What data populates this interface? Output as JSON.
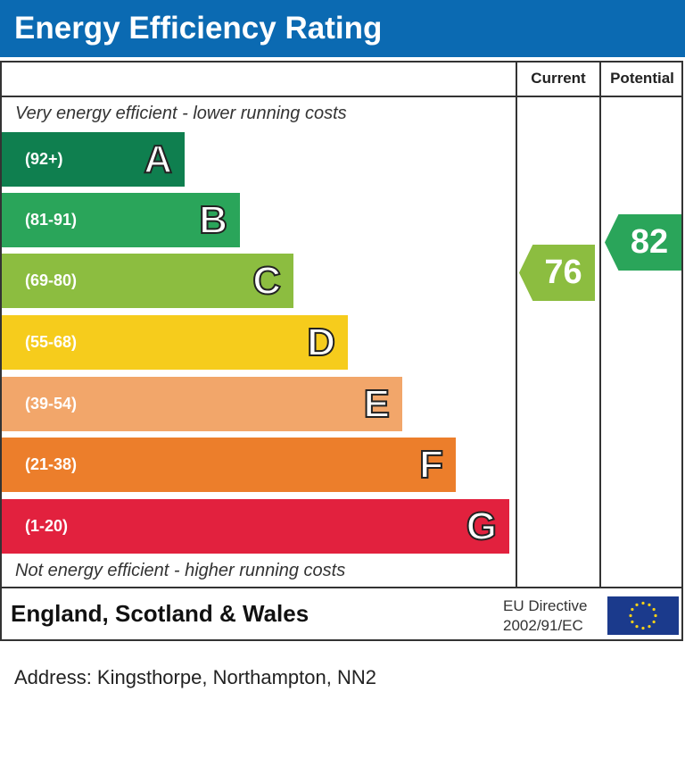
{
  "title": "Energy Efficiency Rating",
  "columns": {
    "current": "Current",
    "potential": "Potential"
  },
  "top_note": "Very energy efficient - lower running costs",
  "bottom_note": "Not energy efficient - higher running costs",
  "footer": {
    "region": "England, Scotland & Wales",
    "directive_line1": "EU Directive",
    "directive_line2": "2002/91/EC",
    "flag_icon": "eu-flag-icon"
  },
  "address": "Address: Kingsthorpe, Northampton, NN2",
  "chart_data": {
    "type": "bar",
    "title": "Energy Efficiency Rating",
    "categories": [
      "A",
      "B",
      "C",
      "D",
      "E",
      "F",
      "G"
    ],
    "ranges": [
      "(92+)",
      "(81-91)",
      "(69-80)",
      "(55-68)",
      "(39-54)",
      "(21-38)",
      "(1-20)"
    ],
    "colors": [
      "#0f7f4f",
      "#2aa55a",
      "#8cbd40",
      "#f6cc1c",
      "#f2a66a",
      "#ec7e2b",
      "#e2213e"
    ],
    "current": {
      "value": 76,
      "band": "C",
      "color": "#8cbd40"
    },
    "potential": {
      "value": 82,
      "band": "B",
      "color": "#2aa55a"
    }
  }
}
